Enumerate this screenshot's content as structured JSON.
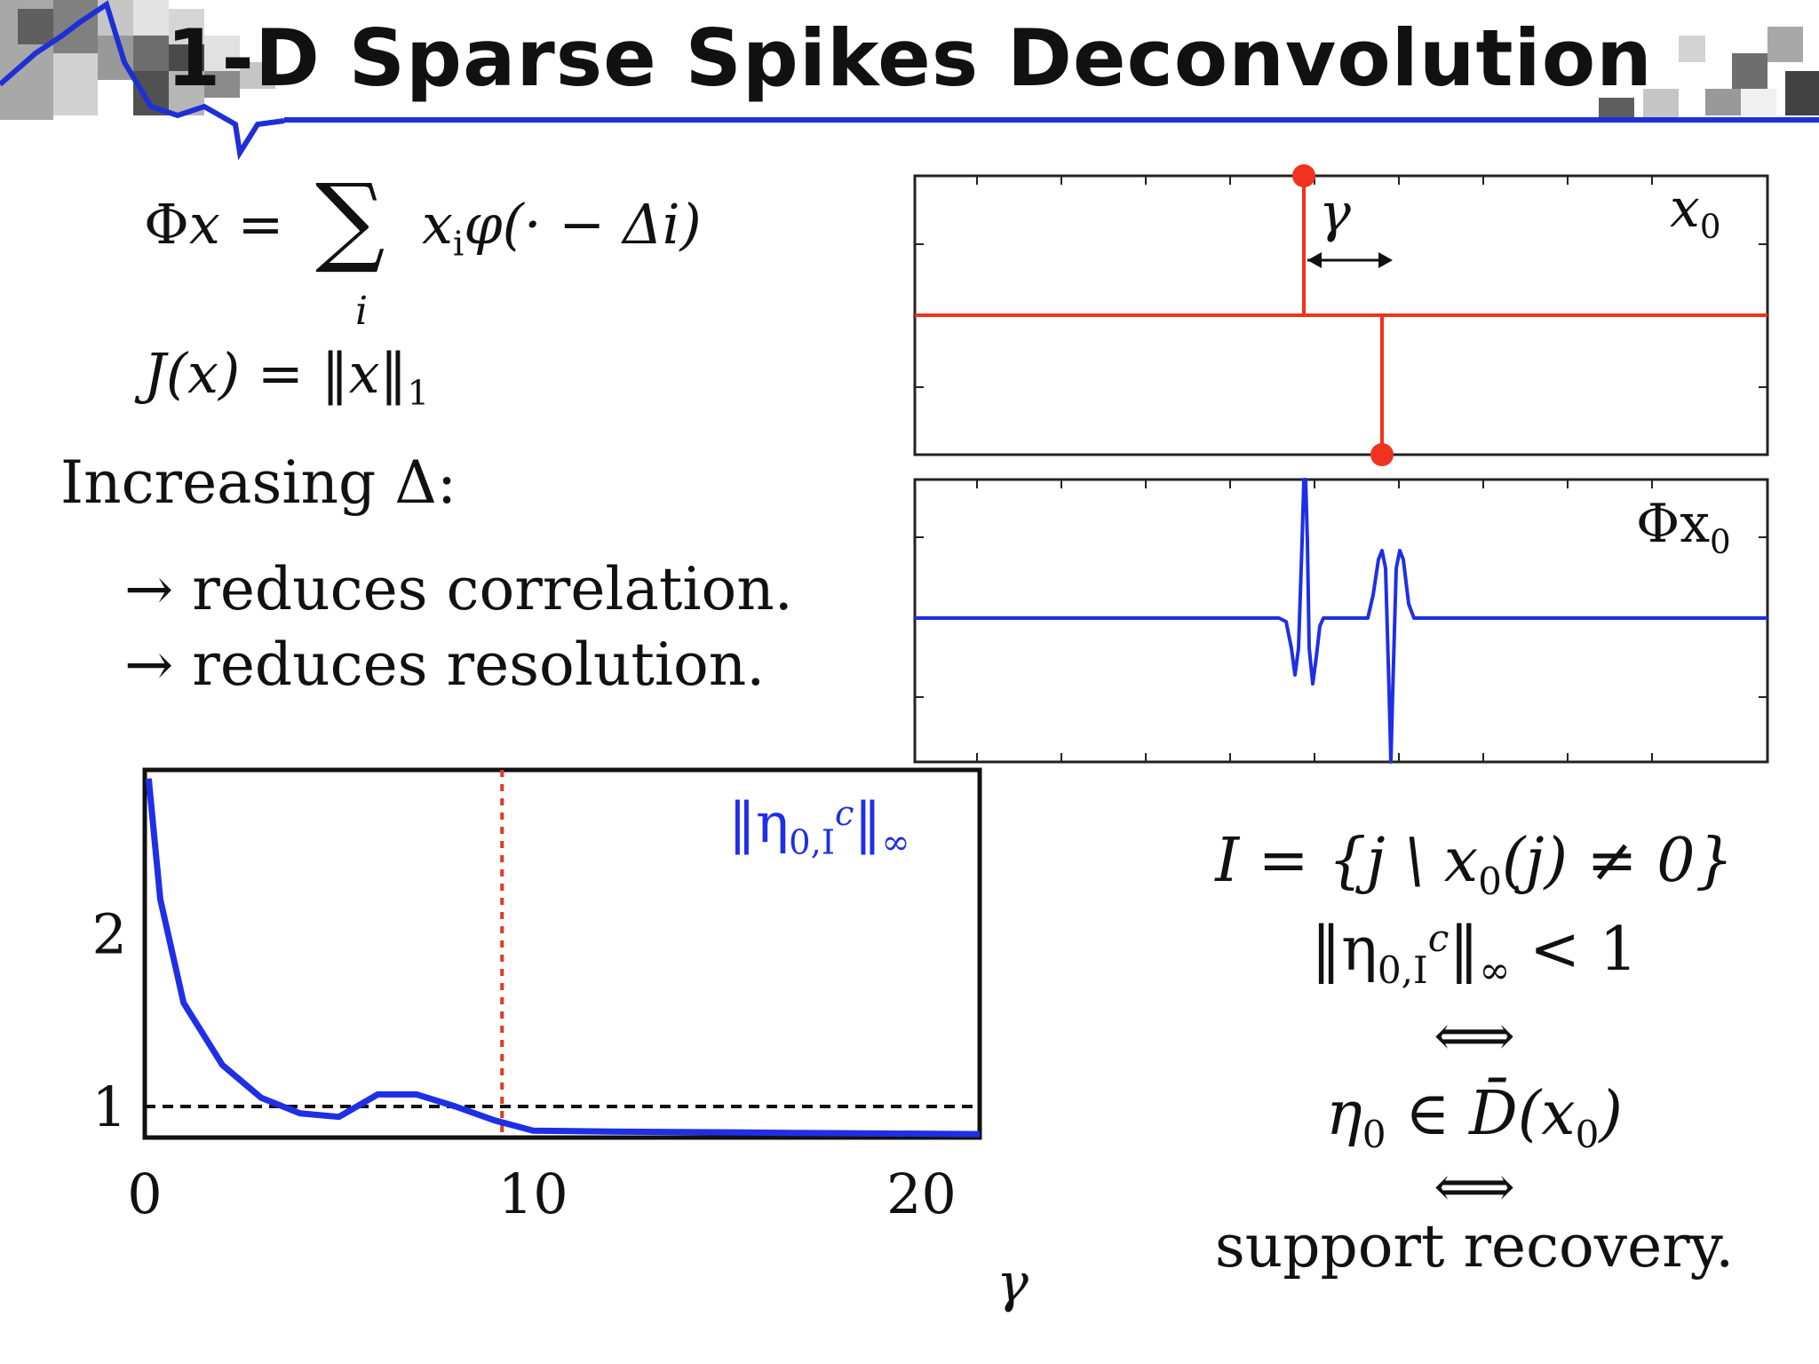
{
  "header": {
    "title": "1-D Sparse Spikes Deconvolution"
  },
  "formulas": {
    "phi_lhs": "Φ",
    "phi_x": "x",
    "eq": "=",
    "sum": "∑",
    "sum_index": "i",
    "phi_term": "x",
    "phi_term_sub": "i",
    "phi_kernel": "φ(· − Δi)",
    "j_lhs": "J(x)",
    "j_rhs": "‖x‖",
    "j_sub": "1"
  },
  "text": {
    "increasing": "Increasing Δ:",
    "bullet_arrow": "→",
    "bullet1": "reduces correlation.",
    "bullet2": "reduces resolution."
  },
  "top_plot": {
    "label": "x",
    "label_sub": "0",
    "gamma": "γ"
  },
  "bottom_plot": {
    "label": "Φx",
    "label_sub": "0"
  },
  "conditions": {
    "set_def": "I = {j \\ x",
    "set_def_sub": "0",
    "set_def_rest": "(j) ≠ 0}",
    "norm": "‖η",
    "norm_sub": "0,I",
    "norm_sup": "c",
    "norm_end": "‖",
    "norm_inf": "∞",
    "norm_lt": "< 1",
    "iff": "⟺",
    "eta": "η",
    "eta_sub": "0",
    "in_D": "∈ D̄(x",
    "in_D_sub": "0",
    "in_D_end": ")",
    "support": "support recovery."
  },
  "chart_data": {
    "type": "line",
    "title": "",
    "xlabel": "γ",
    "ylabel": "",
    "xlim": [
      0,
      21.5
    ],
    "ylim": [
      0.82,
      2.95
    ],
    "xticks": [
      "0",
      "10",
      "20"
    ],
    "yticks": [
      "1",
      "2"
    ],
    "series": [
      {
        "name": "‖η0,Ic‖∞",
        "color": "#1f2fe6",
        "x": [
          0.1,
          0.4,
          1.0,
          2.0,
          3.0,
          4.0,
          5.0,
          6.0,
          7.0,
          8.0,
          9.0,
          10.0,
          12.0,
          15.0,
          18.0,
          21.5
        ],
        "y": [
          2.9,
          2.2,
          1.6,
          1.24,
          1.05,
          0.96,
          0.94,
          1.07,
          1.07,
          1.0,
          0.92,
          0.86,
          0.855,
          0.85,
          0.845,
          0.84
        ]
      }
    ],
    "reference_lines": [
      {
        "orientation": "horizontal",
        "value": 1,
        "style": "dashed",
        "color": "#111111"
      },
      {
        "orientation": "vertical",
        "value": 9.2,
        "style": "dotted",
        "color": "#e23a1e"
      }
    ]
  },
  "colors": {
    "accent": "#1f2fd6",
    "spike": "#f0321e",
    "signal": "#1f2fe6"
  }
}
